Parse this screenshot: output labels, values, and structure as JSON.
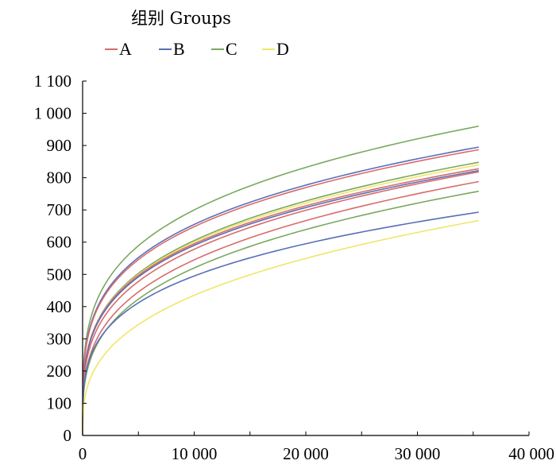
{
  "chart_data": {
    "type": "line",
    "legend_title": "组别 Groups",
    "legend_position": "top-left",
    "xlim": [
      0,
      40000
    ],
    "ylim": [
      0,
      1100
    ],
    "x_ticks": [
      0,
      10000,
      20000,
      30000,
      40000
    ],
    "x_tick_labels": [
      "0",
      "10 000",
      "20 000",
      "30 000",
      "40 000"
    ],
    "y_ticks": [
      0,
      100,
      200,
      300,
      400,
      500,
      600,
      700,
      800,
      900,
      1000,
      1100
    ],
    "y_tick_labels": [
      "0",
      "100",
      "200",
      "300",
      "400",
      "500",
      "600",
      "700",
      "800",
      "900",
      "1 000",
      "1 100"
    ],
    "grid": false,
    "groups": [
      {
        "name": "A",
        "color": "#d96b6b"
      },
      {
        "name": "B",
        "color": "#5a6fb5"
      },
      {
        "name": "C",
        "color": "#7aa860"
      },
      {
        "name": "D",
        "color": "#f0e66a"
      }
    ],
    "curves": [
      {
        "group": "C",
        "final": 960,
        "y_at_10000": 700
      },
      {
        "group": "B",
        "final": 895,
        "y_at_10000": 655
      },
      {
        "group": "A",
        "final": 887,
        "y_at_10000": 648
      },
      {
        "group": "C",
        "final": 848,
        "y_at_10000": 605
      },
      {
        "group": "D",
        "final": 840,
        "y_at_10000": 600
      },
      {
        "group": "A",
        "final": 828,
        "y_at_10000": 595
      },
      {
        "group": "B",
        "final": 822,
        "y_at_10000": 590
      },
      {
        "group": "A",
        "final": 818,
        "y_at_10000": 578
      },
      {
        "group": "A",
        "final": 788,
        "y_at_10000": 545
      },
      {
        "group": "C",
        "final": 758,
        "y_at_10000": 520
      },
      {
        "group": "B",
        "final": 693,
        "y_at_10000": 495
      },
      {
        "group": "D",
        "final": 667,
        "y_at_10000": 435
      }
    ],
    "x_end": 35500
  }
}
